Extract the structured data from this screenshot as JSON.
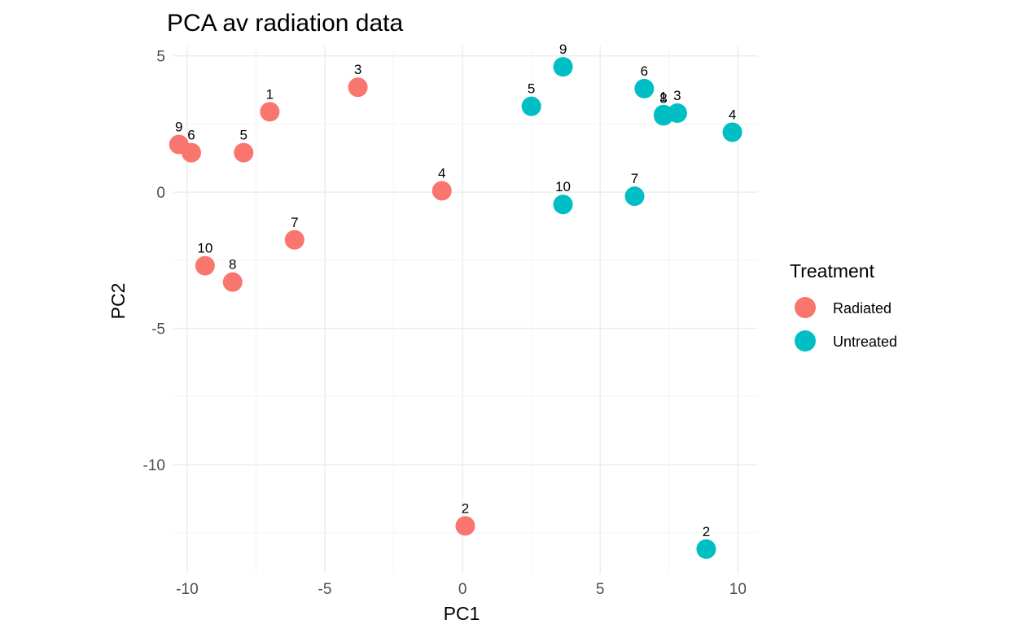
{
  "chart_data": {
    "type": "scatter",
    "title": "PCA av radiation data",
    "xlabel": "PC1",
    "ylabel": "PC2",
    "xlim": [
      -10.5,
      10.7
    ],
    "ylim": [
      -14.0,
      5.35
    ],
    "x_ticks": [
      -10,
      -5,
      0,
      5,
      10
    ],
    "x_tick_labels": [
      "-10",
      "-5",
      "0",
      "5",
      "10"
    ],
    "y_ticks": [
      5,
      0,
      -5,
      -10
    ],
    "y_tick_labels": [
      "5",
      "0",
      "-5",
      "-10"
    ],
    "grid": true,
    "legend": {
      "title": "Treatment",
      "position": "right"
    },
    "series": [
      {
        "name": "Radiated",
        "color": "#F8766D",
        "points": [
          {
            "label": "1",
            "x": -7.0,
            "y": 2.95
          },
          {
            "label": "2",
            "x": 0.1,
            "y": -12.25
          },
          {
            "label": "3",
            "x": -3.8,
            "y": 3.85
          },
          {
            "label": "4",
            "x": -0.75,
            "y": 0.05
          },
          {
            "label": "5",
            "x": -7.95,
            "y": 1.45
          },
          {
            "label": "6",
            "x": -9.85,
            "y": 1.45
          },
          {
            "label": "7",
            "x": -6.1,
            "y": -1.75
          },
          {
            "label": "8",
            "x": -8.35,
            "y": -3.3
          },
          {
            "label": "9",
            "x": -10.3,
            "y": 1.75
          },
          {
            "label": "10",
            "x": -9.35,
            "y": -2.7
          }
        ]
      },
      {
        "name": "Untreated",
        "color": "#00BFC4",
        "points": [
          {
            "label": "1",
            "x": 7.3,
            "y": 2.85
          },
          {
            "label": "2",
            "x": 8.85,
            "y": -13.1
          },
          {
            "label": "3",
            "x": 7.8,
            "y": 2.9
          },
          {
            "label": "4",
            "x": 9.8,
            "y": 2.2
          },
          {
            "label": "5",
            "x": 2.5,
            "y": 3.15
          },
          {
            "label": "6",
            "x": 6.6,
            "y": 3.8
          },
          {
            "label": "7",
            "x": 6.25,
            "y": -0.15
          },
          {
            "label": "8",
            "x": 7.3,
            "y": 2.8
          },
          {
            "label": "9",
            "x": 3.65,
            "y": 4.6
          },
          {
            "label": "10",
            "x": 3.65,
            "y": -0.45
          }
        ]
      }
    ]
  }
}
